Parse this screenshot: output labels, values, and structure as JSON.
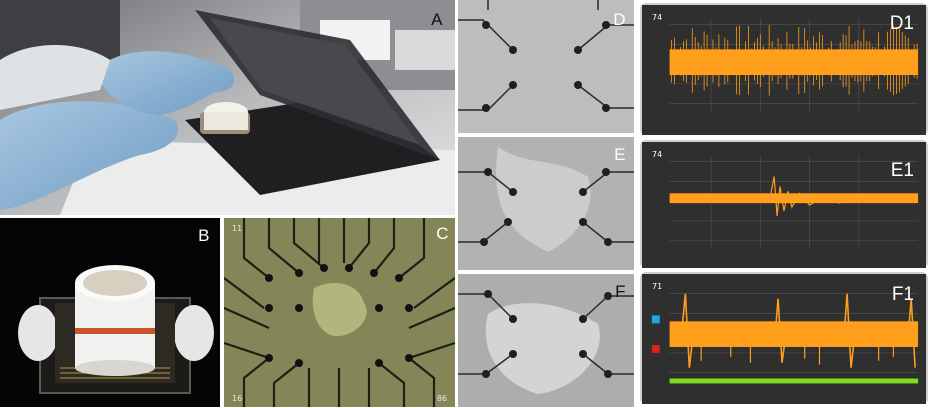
{
  "panels": {
    "a": {
      "label": "A"
    },
    "b": {
      "label": "B"
    },
    "c": {
      "label": "C",
      "electrode_labels": [
        "11",
        "16",
        "86"
      ]
    },
    "d": {
      "label": "D"
    },
    "e": {
      "label": "E"
    },
    "f": {
      "label": "F"
    },
    "d1": {
      "label": "D1",
      "channel": "74"
    },
    "e1": {
      "label": "E1",
      "channel": "74"
    },
    "f1": {
      "label": "F1",
      "channel": "71"
    }
  },
  "colors": {
    "trace": "#ff9f1c",
    "recording_bg": "#2f2f2f",
    "grid": "#555555",
    "spike_markers": "#7ddc1f",
    "marker_blue": "#1aa9e0",
    "marker_red": "#e0201a"
  }
}
